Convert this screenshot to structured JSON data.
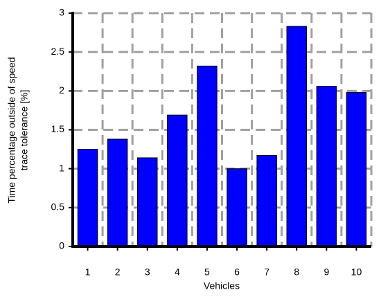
{
  "chart_data": {
    "type": "bar",
    "xlabel": "Vehicles",
    "ylabel": [
      "Time percentage outside of speed",
      "trace tolerance [%]"
    ],
    "categories": [
      "1",
      "2",
      "3",
      "4",
      "5",
      "6",
      "7",
      "8",
      "9",
      "10"
    ],
    "values": [
      1.25,
      1.38,
      1.14,
      1.69,
      2.32,
      1.0,
      1.17,
      2.83,
      2.06,
      1.98
    ],
    "color": "#0000ff",
    "ylim": [
      0,
      3
    ],
    "yticks": [
      0,
      0.5,
      1,
      1.5,
      2,
      2.5,
      3
    ],
    "grid": true
  }
}
